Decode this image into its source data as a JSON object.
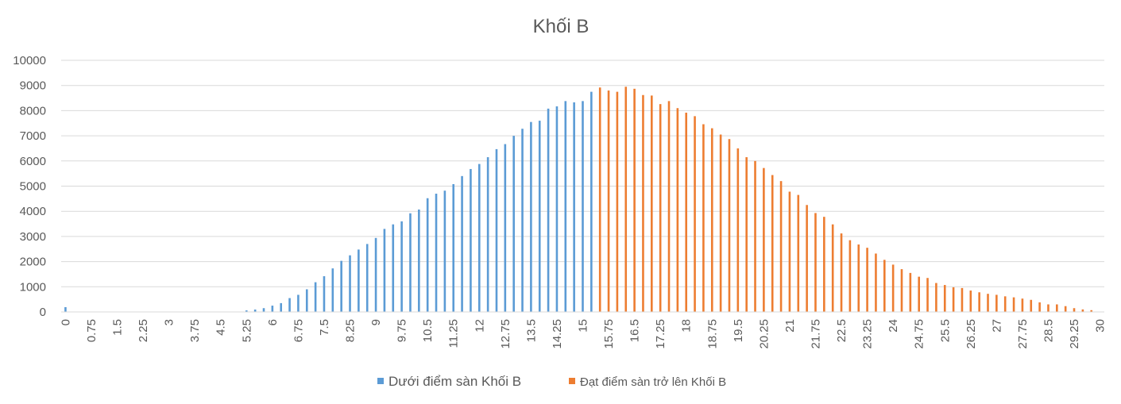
{
  "chart_data": {
    "type": "bar",
    "title": "Khối B",
    "xlabel": "",
    "ylabel": "",
    "ylim": [
      0,
      10000
    ],
    "yticks": [
      0,
      1000,
      2000,
      3000,
      4000,
      5000,
      6000,
      7000,
      8000,
      9000,
      10000
    ],
    "x_start": 0,
    "x_step": 0.25,
    "x_end": 30,
    "x_tick_step": 0.75,
    "grid": true,
    "legend_position": "bottom",
    "series": [
      {
        "name": "Dưới điểm sàn Khối B",
        "color": "#5B9BD5",
        "x_from": 0,
        "values": [
          190,
          3,
          2,
          2,
          2,
          2,
          2,
          2,
          2,
          2,
          2,
          2,
          2,
          2,
          2,
          2,
          3,
          3,
          5,
          10,
          10,
          60,
          95,
          150,
          250,
          350,
          550,
          680,
          900,
          1180,
          1420,
          1730,
          2030,
          2250,
          2480,
          2700,
          2940,
          3300,
          3480,
          3600,
          3920,
          4070,
          4520,
          4700,
          4820,
          5080,
          5400,
          5680,
          5880,
          6150,
          6470,
          6670,
          7000,
          7280,
          7550,
          7600,
          8080,
          8170,
          8380,
          8330,
          8380,
          8750
        ]
      },
      {
        "name": "Đạt điểm sàn trở lên Khối B",
        "color": "#ED7D31",
        "x_from": 15.5,
        "values": [
          8920,
          8800,
          8750,
          8950,
          8870,
          8620,
          8600,
          8260,
          8380,
          8100,
          7920,
          7780,
          7460,
          7300,
          7050,
          6870,
          6500,
          6150,
          6000,
          5720,
          5440,
          5200,
          4780,
          4650,
          4250,
          3930,
          3780,
          3480,
          3120,
          2850,
          2680,
          2550,
          2320,
          2070,
          1880,
          1700,
          1550,
          1400,
          1350,
          1150,
          1070,
          980,
          950,
          850,
          780,
          720,
          680,
          620,
          580,
          530,
          480,
          380,
          300,
          300,
          230,
          150,
          100,
          70
        ]
      }
    ]
  }
}
